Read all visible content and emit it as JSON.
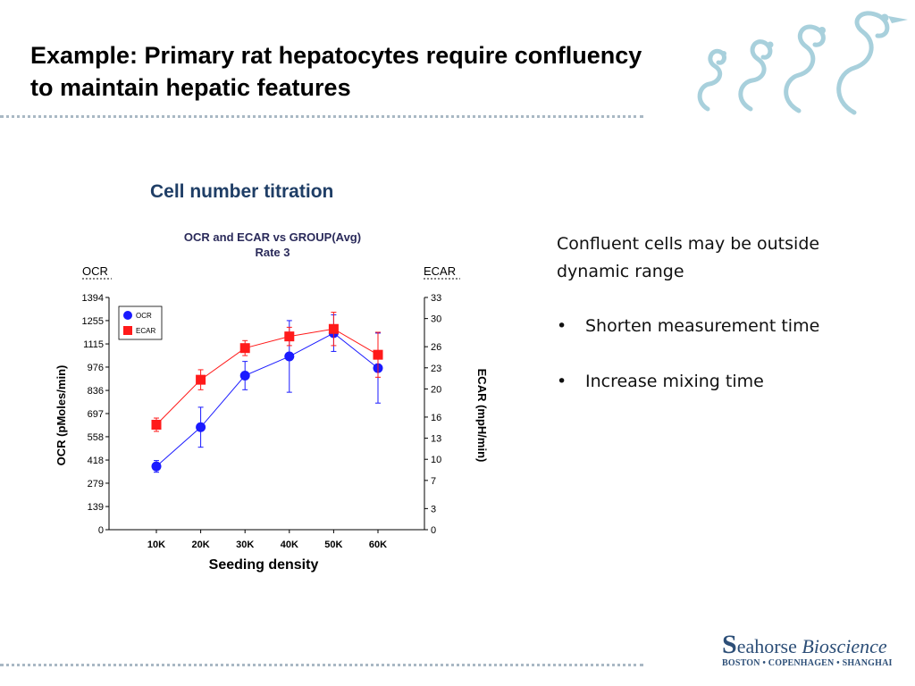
{
  "slide": {
    "title": "Example: Primary rat hepatocytes require confluency to maintain hepatic features",
    "subtitle": "Cell number titration"
  },
  "notes": {
    "lead": "Confluent cells may be outside dynamic range",
    "bullets": [
      "Shorten measurement time",
      "Increase mixing time"
    ]
  },
  "logo": {
    "name_initial": "S",
    "name_rest": "eahorse",
    "name_italic": "Bioscience",
    "cities": "BOSTON • COPENHAGEN • SHANGHAI"
  },
  "colors": {
    "title": "#000000",
    "subtitle": "#1f3e66",
    "ocr": "#1a1aff",
    "ecar": "#ff1a1a",
    "logo": "#2d4f78",
    "seahorse": "#a8d0dc"
  },
  "chart_data": {
    "type": "line",
    "title": "OCR and ECAR vs GROUP(Avg)",
    "subtitle": "Rate 3",
    "xlabel": "Seeding density",
    "ylabel_left": "OCR (pMoles/min)",
    "ylabel_right": "ECAR (mpH/min)",
    "left_axis_tag": "OCR",
    "right_axis_tag": "ECAR",
    "categories": [
      "10K",
      "20K",
      "30K",
      "40K",
      "50K",
      "60K"
    ],
    "ylim_left": [
      0,
      1394
    ],
    "yticks_left": [
      "0",
      "139",
      "279",
      "418",
      "558",
      "697",
      "836",
      "976",
      "1115",
      "1255",
      "1394"
    ],
    "ylim_right": [
      0,
      33
    ],
    "yticks_right": [
      "0",
      "3",
      "7",
      "10",
      "13",
      "16",
      "20",
      "23",
      "26",
      "30",
      "33"
    ],
    "legend": [
      "OCR",
      "ECAR"
    ],
    "legend_position": "top-left",
    "series": [
      {
        "name": "OCR",
        "axis": "left",
        "marker": "circle",
        "values": [
          380,
          615,
          925,
          1040,
          1180,
          970
        ],
        "err": [
          35,
          120,
          85,
          215,
          110,
          210
        ]
      },
      {
        "name": "ECAR",
        "axis": "left",
        "marker": "square",
        "values": [
          630,
          900,
          1090,
          1160,
          1205,
          1050
        ],
        "err": [
          40,
          60,
          45,
          55,
          100,
          135
        ]
      }
    ]
  }
}
